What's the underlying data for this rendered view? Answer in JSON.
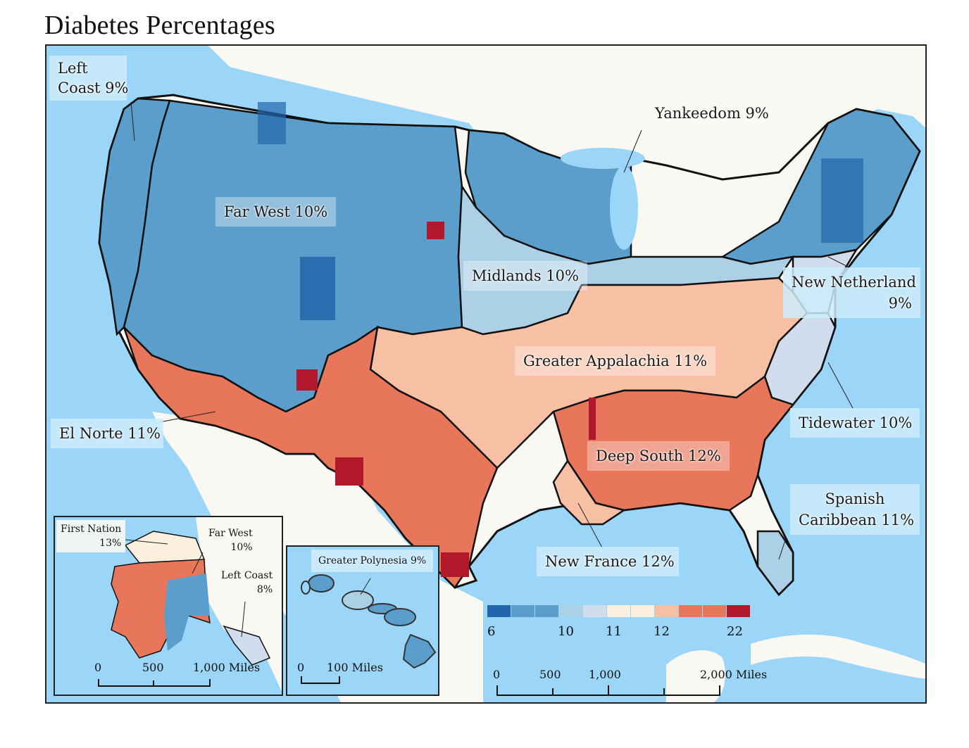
{
  "title": "Diabetes Percentages",
  "regions": [
    {
      "name": "Left Coast",
      "label": "Left Coast 9%",
      "line1": "Left",
      "line2": "Coast 9%",
      "value_pct": 9
    },
    {
      "name": "Far West",
      "label": "Far West 10%",
      "value_pct": 10
    },
    {
      "name": "Yankeedom",
      "label": "Yankeedom 9%",
      "value_pct": 9
    },
    {
      "name": "Midlands",
      "label": "Midlands 10%",
      "value_pct": 10
    },
    {
      "name": "New Netherland",
      "line1": "New Netherland",
      "line2": "9%",
      "value_pct": 9
    },
    {
      "name": "Greater Appalachia",
      "label": "Greater Appalachia 11%",
      "value_pct": 11
    },
    {
      "name": "El Norte",
      "label": "El Norte 11%",
      "value_pct": 11
    },
    {
      "name": "Tidewater",
      "label": "Tidewater 10%",
      "value_pct": 10
    },
    {
      "name": "Deep South",
      "label": "Deep South 12%",
      "value_pct": 12
    },
    {
      "name": "Spanish Caribbean",
      "line1": "Spanish",
      "line2": "Caribbean 11%",
      "value_pct": 11
    },
    {
      "name": "New France",
      "label": "New France 12%",
      "value_pct": 12
    }
  ],
  "alaska_inset": {
    "labels": [
      {
        "line1": "First Nation",
        "line2": "13%"
      },
      {
        "line1": "Far West",
        "line2": "10%"
      },
      {
        "line1": "Left Coast",
        "line2": "8%"
      }
    ],
    "scale": {
      "ticks": [
        "0",
        "500",
        "1,000 Miles"
      ]
    }
  },
  "hawaii_inset": {
    "label": "Greater Polynesia 9%",
    "scale": {
      "ticks": [
        "0",
        "100 Miles"
      ]
    }
  },
  "legend": {
    "colors": [
      "#2166ac",
      "#5b9ecb",
      "#5b9ecb",
      "#acd0e6",
      "#d1dcec",
      "#fbf0de",
      "#fbf0de",
      "#f7bfa3",
      "#e8765a",
      "#e8765a",
      "#b2182b"
    ],
    "tick_labels": [
      "6",
      "10",
      "11",
      "12",
      "22"
    ]
  },
  "scale_bar": {
    "ticks": [
      "0",
      "500",
      "1,000",
      "2,000 Miles"
    ]
  },
  "colors": {
    "water": "#9bd6f8",
    "land": "#faf8f3",
    "label_box_sea": "#cdecfc",
    "border": "#111111"
  },
  "chart_data": {
    "type": "choropleth",
    "title": "Diabetes Percentages",
    "unit": "%",
    "legend_breaks": [
      6,
      10,
      11,
      12,
      22
    ],
    "legend_bins": 11,
    "regions": [
      {
        "name": "Left Coast",
        "value": 9
      },
      {
        "name": "Far West",
        "value": 10
      },
      {
        "name": "Yankeedom",
        "value": 9
      },
      {
        "name": "Midlands",
        "value": 10
      },
      {
        "name": "New Netherland",
        "value": 9
      },
      {
        "name": "Greater Appalachia",
        "value": 11
      },
      {
        "name": "El Norte",
        "value": 11
      },
      {
        "name": "Tidewater",
        "value": 10
      },
      {
        "name": "Deep South",
        "value": 12
      },
      {
        "name": "Spanish Caribbean",
        "value": 11
      },
      {
        "name": "New France",
        "value": 12
      },
      {
        "name": "First Nation (Alaska)",
        "value": 13
      },
      {
        "name": "Far West (Alaska)",
        "value": 10
      },
      {
        "name": "Left Coast (Alaska)",
        "value": 8
      },
      {
        "name": "Greater Polynesia",
        "value": 9
      }
    ]
  }
}
